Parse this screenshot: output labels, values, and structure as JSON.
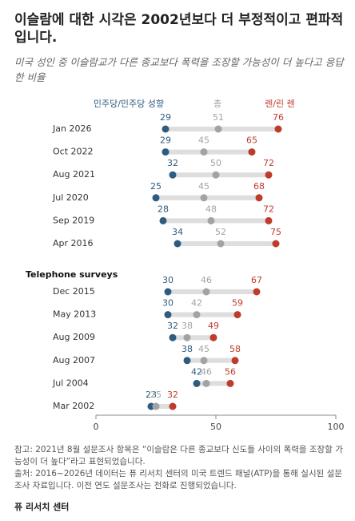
{
  "chart_data": {
    "type": "dot",
    "title": "이슬람에 대한 시각은 2002년보다 더 부정적이고 편파적입니다.",
    "subtitle": "미국 성인 중 이슬람교가 다른 종교보다 폭력을 조장할 가능성이 더 높다고 응답한 비율",
    "categories": [
      "Jan 2026",
      "Oct 2022",
      "Aug 2021",
      "Jul 2020",
      "Sep 2019",
      "Apr 2016",
      "Dec 2015",
      "May 2013",
      "Aug 2009",
      "Aug 2007",
      "Jul 2004",
      "Mar 2002"
    ],
    "series": [
      {
        "name": "민주당/민주당 성향",
        "color": "#2f5b7e",
        "values": [
          29,
          29,
          32,
          25,
          28,
          34,
          30,
          30,
          32,
          38,
          42,
          23
        ]
      },
      {
        "name": "총",
        "color": "#a3a3a3",
        "values": [
          51,
          45,
          50,
          45,
          48,
          52,
          46,
          42,
          38,
          45,
          46,
          25
        ]
      },
      {
        "name": "렌/린 렌",
        "color": "#bf3b2c",
        "values": [
          76,
          65,
          72,
          68,
          72,
          75,
          67,
          59,
          49,
          58,
          56,
          32
        ]
      }
    ],
    "annotation": "Telephone surveys",
    "xlim": [
      0,
      100
    ],
    "xticks": [
      0,
      50,
      100
    ],
    "note": "참고: 2021년 8월 설문조사 항목은 “이슬람은 다른 종교보다 신도들 사이의 폭력을 조장할 가능성이 더 높다”라고 표현되었습니다.",
    "source": "출처: 2016~2026년 데이터는 퓨 리서치 센터의 미국 트렌드 패널(ATP)을 통해 실시된 설문조사 자료입니다. 이전 연도 설문조사는 전화로 진행되었습니다.",
    "organization": "퓨 리서치 센터"
  }
}
